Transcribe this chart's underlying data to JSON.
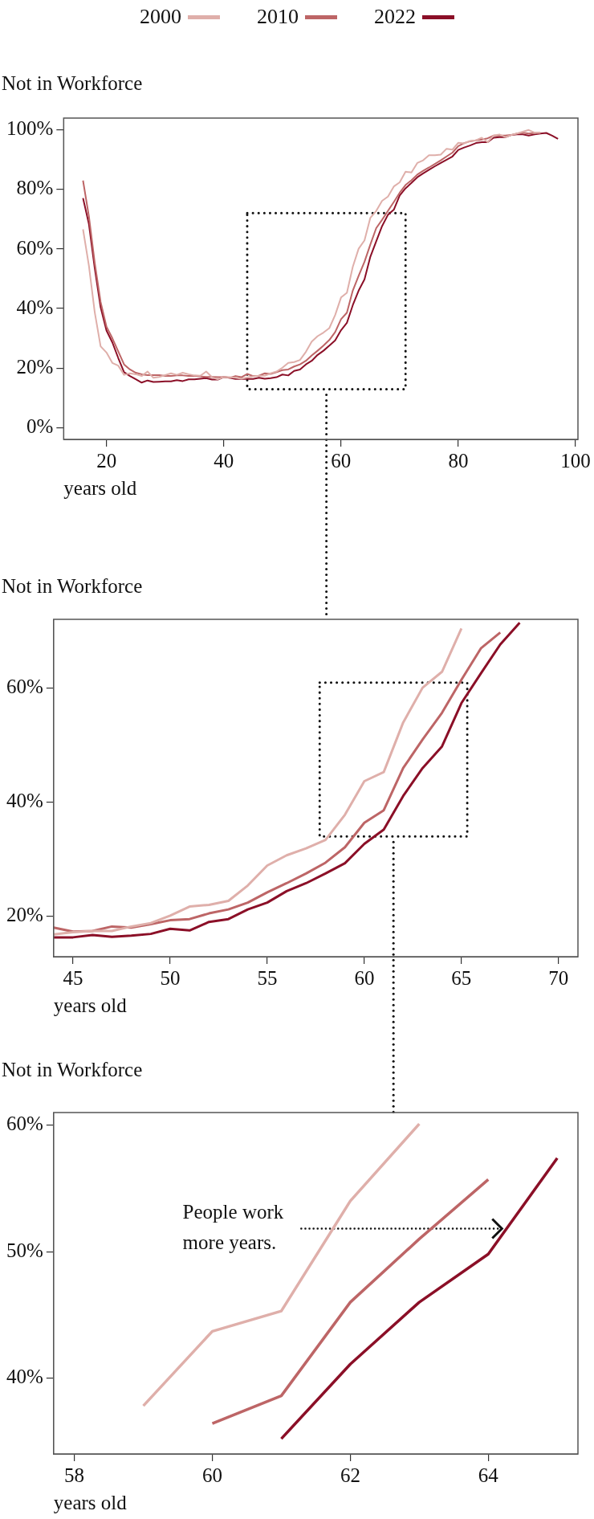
{
  "chart_data": [
    {
      "type": "line",
      "ylabel": "Not in Workforce",
      "xlabel": "years old",
      "legend": "top",
      "grid": false,
      "xlim": [
        12.7,
        100.4
      ],
      "ylim": [
        -4,
        104
      ],
      "xticks": [
        20,
        40,
        60,
        80,
        100
      ],
      "yticks": [
        {
          "value": 0,
          "label": "0%"
        },
        {
          "value": 20,
          "label": "20%"
        },
        {
          "value": 40,
          "label": "40%"
        },
        {
          "value": 60,
          "label": "60%"
        },
        {
          "value": 80,
          "label": "80%"
        },
        {
          "value": 100,
          "label": "100%"
        }
      ],
      "series": [
        {
          "name": "2000",
          "color": "#dfafaa",
          "x": [
            16,
            17,
            18,
            19,
            20,
            21,
            22,
            23,
            24,
            25,
            26,
            27,
            28,
            29,
            30,
            31,
            32,
            33,
            34,
            35,
            36,
            37,
            38,
            39,
            40,
            41,
            42,
            43,
            44,
            45,
            46,
            47,
            48,
            49,
            50,
            51,
            52,
            53,
            54,
            55,
            56,
            57,
            58,
            59,
            60,
            61,
            62,
            63,
            64,
            65,
            66,
            67,
            68,
            69,
            70,
            71,
            72,
            73,
            74,
            75,
            76,
            77,
            78,
            79,
            80,
            81,
            82,
            83,
            84,
            85,
            86,
            87,
            88,
            89,
            90,
            91,
            92,
            93,
            94
          ],
          "values": [
            66.6,
            54.4,
            38.7,
            27.3,
            25.2,
            21.7,
            20.8,
            17.7,
            18.2,
            17.9,
            17.3,
            18.8,
            16.7,
            17.0,
            17.6,
            18.2,
            17.7,
            18.4,
            17.9,
            17.5,
            17.4,
            18.8,
            16.9,
            16.2,
            17.0,
            16.9,
            16.7,
            16.4,
            16.8,
            17.2,
            17.4,
            17.4,
            18.2,
            18.8,
            20.1,
            21.7,
            22.0,
            22.7,
            25.4,
            28.9,
            30.7,
            31.9,
            33.4,
            37.8,
            43.7,
            45.3,
            54.0,
            60.1,
            62.9,
            70.5,
            72.8,
            76.2,
            77.6,
            81.0,
            82.4,
            86.0,
            85.7,
            88.9,
            89.8,
            91.5,
            91.5,
            91.7,
            93.7,
            93.4,
            95.7,
            95.5,
            96.3,
            96.5,
            97.4,
            95.9,
            98.1,
            98.5,
            97.6,
            98.3,
            98.8,
            99.4,
            100,
            99.1,
            99.1
          ]
        },
        {
          "name": "2010",
          "color": "#bd6566",
          "x": [
            16,
            17,
            18,
            19,
            20,
            21,
            22,
            23,
            24,
            25,
            26,
            27,
            28,
            29,
            30,
            31,
            32,
            33,
            34,
            35,
            36,
            37,
            38,
            39,
            40,
            41,
            42,
            43,
            44,
            45,
            46,
            47,
            48,
            49,
            50,
            51,
            52,
            53,
            54,
            55,
            56,
            57,
            58,
            59,
            60,
            61,
            62,
            63,
            64,
            65,
            66,
            67,
            68,
            69,
            70,
            71,
            72,
            73,
            74,
            75,
            76,
            77,
            78,
            79,
            80,
            81,
            82,
            83,
            84,
            85,
            86,
            87,
            88,
            89,
            90,
            91,
            92,
            93,
            94
          ],
          "values": [
            83.0,
            71.0,
            55.3,
            42.2,
            33.9,
            30.0,
            25.6,
            21.2,
            19.5,
            18.4,
            17.9,
            17.6,
            17.6,
            17.6,
            17.3,
            17.3,
            17.5,
            17.5,
            17.3,
            17.3,
            17.2,
            17.0,
            17.0,
            16.9,
            16.9,
            16.7,
            17.3,
            16.9,
            18.0,
            17.3,
            17.4,
            18.2,
            18.0,
            18.6,
            19.3,
            19.5,
            20.5,
            21.2,
            22.4,
            24.2,
            25.8,
            27.5,
            29.4,
            32.1,
            36.4,
            38.6,
            46.0,
            51.0,
            55.7,
            61.5,
            67.0,
            69.8,
            72.8,
            75.8,
            78.9,
            81.5,
            83.1,
            85.0,
            86.3,
            87.4,
            88.6,
            89.8,
            91.1,
            92.4,
            94.6,
            95.6,
            96.2,
            96.5,
            96.8,
            97.2,
            98.1,
            98.1,
            98.1,
            98.3,
            98.8,
            99.1,
            98.8,
            99.0,
            99.1
          ]
        },
        {
          "name": "2022",
          "color": "#8b0f27",
          "x": [
            16,
            17,
            18,
            19,
            20,
            21,
            22,
            23,
            24,
            25,
            26,
            27,
            28,
            29,
            30,
            31,
            32,
            33,
            34,
            35,
            36,
            37,
            38,
            39,
            40,
            41,
            42,
            43,
            44,
            45,
            46,
            47,
            48,
            49,
            50,
            51,
            52,
            53,
            54,
            55,
            56,
            57,
            58,
            59,
            60,
            61,
            62,
            63,
            64,
            65,
            66,
            67,
            68,
            69,
            70,
            71,
            72,
            73,
            74,
            75,
            76,
            77,
            78,
            79,
            80,
            81,
            82,
            83,
            84,
            85,
            86,
            87,
            88,
            89,
            90,
            91,
            92,
            93,
            94,
            95,
            96,
            97
          ],
          "values": [
            77.1,
            68.4,
            53.5,
            40.4,
            32.6,
            28.6,
            23.4,
            18.6,
            17.3,
            16.2,
            15.1,
            15.8,
            15.3,
            15.4,
            15.5,
            15.5,
            15.9,
            15.6,
            16.2,
            16.2,
            16.4,
            16.6,
            16.1,
            16.1,
            17.0,
            16.7,
            16.3,
            16.4,
            16.3,
            16.3,
            16.7,
            16.4,
            16.6,
            16.9,
            17.8,
            17.5,
            19.0,
            19.5,
            21.2,
            22.4,
            24.4,
            25.8,
            27.5,
            29.3,
            32.7,
            35.2,
            41.1,
            46.0,
            49.8,
            57.4,
            62.6,
            67.7,
            71.5,
            73.2,
            78.0,
            80.4,
            82.2,
            84.1,
            85.4,
            86.6,
            87.8,
            88.9,
            90.0,
            91.1,
            93.3,
            94.1,
            94.8,
            95.6,
            95.9,
            95.9,
            97.4,
            97.6,
            97.6,
            98.3,
            98.5,
            98.5,
            98.1,
            98.5,
            98.8,
            99.0,
            98.1,
            97.0
          ]
        }
      ]
    },
    {
      "type": "line",
      "ylabel": "Not in Workforce",
      "xlabel": "years old",
      "grid": false,
      "xlim": [
        44,
        71
      ],
      "ylim": [
        12.9,
        72.1
      ],
      "xticks": [
        45,
        50,
        55,
        60,
        65,
        70
      ],
      "yticks": [
        {
          "value": 20,
          "label": "20%"
        },
        {
          "value": 40,
          "label": "40%"
        },
        {
          "value": 60,
          "label": "60%"
        }
      ],
      "series": [
        {
          "color": "#dfafaa",
          "x": [
            44,
            45,
            46,
            47,
            48,
            49,
            50,
            51,
            52,
            53,
            54,
            55,
            56,
            57,
            58,
            59,
            60,
            61,
            62,
            63,
            64,
            65
          ],
          "values": [
            16.8,
            17.2,
            17.4,
            17.4,
            18.2,
            18.8,
            20.1,
            21.7,
            22.0,
            22.7,
            25.4,
            28.9,
            30.7,
            31.9,
            33.4,
            37.8,
            43.7,
            45.3,
            54.0,
            60.1,
            62.9,
            70.5
          ]
        },
        {
          "color": "#bd6566",
          "x": [
            44,
            45,
            46,
            47,
            48,
            49,
            50,
            51,
            52,
            53,
            54,
            55,
            56,
            57,
            58,
            59,
            60,
            61,
            62,
            63,
            64,
            65,
            66,
            67
          ],
          "values": [
            18.0,
            17.3,
            17.4,
            18.2,
            18.0,
            18.6,
            19.3,
            19.5,
            20.5,
            21.2,
            22.4,
            24.2,
            25.8,
            27.5,
            29.4,
            32.1,
            36.4,
            38.6,
            46.0,
            51.0,
            55.7,
            61.5,
            67.0,
            69.8
          ]
        },
        {
          "color": "#8b0f27",
          "x": [
            44,
            45,
            46,
            47,
            48,
            49,
            50,
            51,
            52,
            53,
            54,
            55,
            56,
            57,
            58,
            59,
            60,
            61,
            62,
            63,
            64,
            65,
            66,
            67,
            68
          ],
          "values": [
            16.3,
            16.3,
            16.7,
            16.4,
            16.6,
            16.9,
            17.8,
            17.5,
            19.0,
            19.5,
            21.2,
            22.4,
            24.4,
            25.8,
            27.5,
            29.3,
            32.7,
            35.2,
            41.1,
            46.0,
            49.8,
            57.4,
            62.6,
            67.7,
            71.5
          ]
        }
      ]
    },
    {
      "type": "line",
      "ylabel": "Not in Workforce",
      "xlabel": "years old",
      "grid": false,
      "xlim": [
        57.7,
        65.3
      ],
      "ylim": [
        34,
        61
      ],
      "xticks": [
        58,
        60,
        62,
        64
      ],
      "yticks": [
        {
          "value": 40,
          "label": "40%"
        },
        {
          "value": 50,
          "label": "50%"
        },
        {
          "value": 60,
          "label": "60%"
        }
      ],
      "annotations": [
        "People work more years."
      ],
      "series": [
        {
          "color": "#dfafaa",
          "x": [
            59,
            60,
            61,
            62,
            63
          ],
          "values": [
            37.8,
            43.7,
            45.3,
            54.0,
            60.1
          ]
        },
        {
          "color": "#bd6566",
          "x": [
            60,
            61,
            62,
            63,
            64
          ],
          "values": [
            36.4,
            38.6,
            46.0,
            51.0,
            55.7
          ]
        },
        {
          "color": "#8b0f27",
          "x": [
            61,
            62,
            63,
            64,
            65
          ],
          "values": [
            35.2,
            41.1,
            46.0,
            49.8,
            57.4
          ]
        }
      ]
    }
  ]
}
